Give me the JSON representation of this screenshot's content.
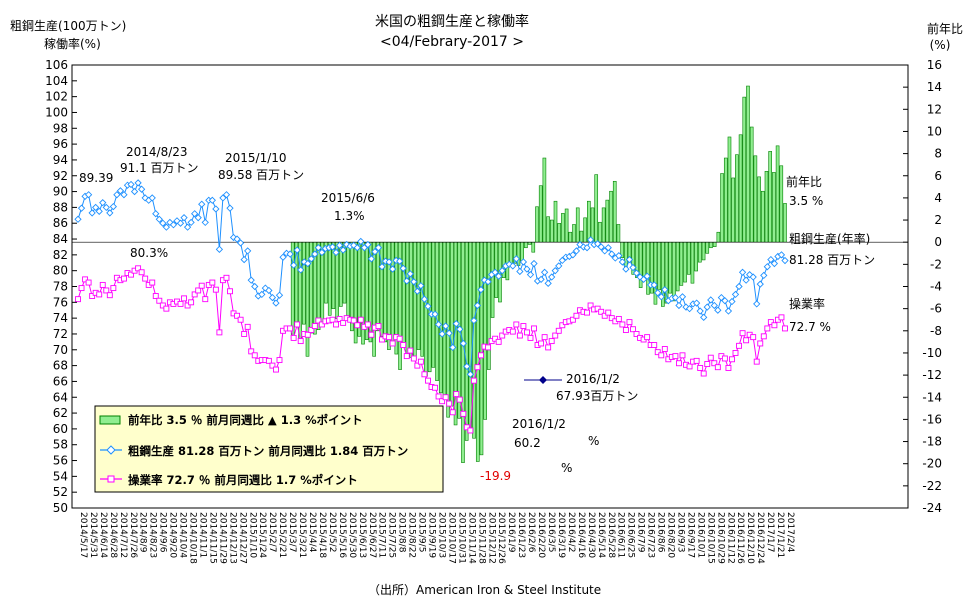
{
  "chart_data": {
    "type": "bar+line",
    "title": "米国の粗鋼生産と稼働率",
    "subtitle": "<04/Febrary-2017 >",
    "left_axis_label_1": "粗鋼生産(100万トン)",
    "left_axis_label_2": "稼働率(%)",
    "right_axis_label_1": "前年比",
    "right_axis_label_2": "(%)",
    "source": "（出所）American Iron & Steel Institute",
    "y_left": {
      "min": 50,
      "max": 106,
      "step": 2
    },
    "y_right": {
      "min": -24,
      "max": 16,
      "step": 2
    },
    "grid": false,
    "x_tick_labels": [
      "2014/5/17",
      "2014/5/31",
      "2014/6/14",
      "2014/6/28",
      "2014/7/12",
      "2014/7/26",
      "2014/8/9",
      "2014/8/23",
      "2014/9/6",
      "2014/9/20",
      "2014/10/4",
      "2014/10/18",
      "2014/11/1",
      "2014/11/15",
      "2014/11/29",
      "2014/12/13",
      "2014/12/27",
      "2015/1/10",
      "2015/1/24",
      "2015/2/7",
      "2015/2/21",
      "2015/3/7",
      "2015/3/21",
      "2015/4/4",
      "2015/4/18",
      "2015/5/2",
      "2015/5/16",
      "2015/5/30",
      "2015/6/13",
      "2015/6/27",
      "2015/7/11",
      "2015/7/25",
      "2015/8/8",
      "2015/8/22",
      "2015/9/5",
      "2015/9/19",
      "2015/10/3",
      "2015/10/17",
      "2015/10/31",
      "2015/11/14",
      "2015/11/28",
      "2015/12/12",
      "2015/12/26",
      "2016/1/9",
      "2016/1/23",
      "2016/2/6",
      "2016/2/20",
      "2016/3/5",
      "2016/3/19",
      "2016/4/2",
      "2016/4/16",
      "2016/4/30",
      "2016/5/14",
      "2016/5/28",
      "2016/6/11",
      "2016/6/25",
      "2016/7/9",
      "2016/7/23",
      "2016/8/6",
      "2016/8/20",
      "2016/9/3",
      "2016/9/17",
      "2016/10/1",
      "2016/10/15",
      "2016/10/29",
      "2016/11/12",
      "2016/11/26",
      "2016/12/10",
      "2016/12/24",
      "2017/1/7",
      "2017/1/21",
      "2017/2/4"
    ],
    "series": [
      {
        "name": "粗鋼生産",
        "axis": "left",
        "color": "#1e90ff",
        "marker": "diamond",
        "values": [
          86.5,
          87.9,
          89.4,
          89.6,
          87.3,
          88.0,
          87.5,
          88.6,
          88.0,
          87.3,
          88.1,
          89.6,
          90.1,
          89.6,
          90.8,
          90.9,
          90.0,
          91.1,
          90.3,
          89.2,
          88.9,
          89.2,
          87.2,
          86.5,
          86.0,
          85.5,
          86.1,
          85.8,
          86.3,
          86.0,
          86.7,
          85.5,
          86.1,
          87.2,
          86.7,
          88.4,
          86.1,
          88.9,
          88.9,
          87.8,
          82.7,
          89.2,
          89.6,
          87.9,
          84.2,
          84.0,
          83.5,
          81.4,
          82.5,
          78.8,
          78.0,
          76.8,
          77.0,
          77.8,
          77.5,
          76.6,
          75.9,
          76.9,
          81.7,
          82.2,
          82.1,
          80.7,
          82.6,
          80.1,
          81.1,
          80.9,
          81.5,
          82.1,
          82.9,
          82.3,
          82.8,
          82.9,
          83.0,
          82.3,
          83.2,
          82.6,
          83.3,
          83.1,
          83.2,
          82.9,
          83.7,
          82.9,
          83.3,
          81.5,
          82.4,
          82.9,
          80.5,
          81.2,
          81.1,
          80.2,
          81.3,
          81.2,
          80.3,
          78.7,
          79.6,
          78.6,
          77.4,
          78.1,
          76.4,
          75.5,
          74.5,
          74.5,
          73.2,
          72.0,
          73.0,
          72.1,
          70.3,
          73.3,
          72.6,
          70.8,
          67.9,
          66.9,
          73.7,
          75.6,
          77.6,
          78.8,
          78.6,
          79.5,
          79.8,
          79.3,
          80.0,
          80.6,
          80.8,
          80.6,
          81.5,
          79.9,
          81.1,
          80.2,
          79.5,
          80.9,
          78.7,
          78.9,
          79.8,
          78.4,
          79.2,
          80.0,
          80.6,
          81.3,
          81.7,
          81.8,
          82.0,
          82.5,
          83.3,
          83.0,
          82.9,
          83.9,
          83.3,
          83.4,
          83.0,
          82.5,
          82.9,
          82.1,
          81.6,
          81.9,
          81.1,
          80.2,
          81.4,
          80.4,
          79.7,
          79.2,
          78.9,
          79.3,
          78.2,
          78.2,
          77.2,
          76.7,
          77.6,
          76.2,
          76.5,
          76.6,
          75.6,
          76.7,
          75.4,
          75.2,
          75.8,
          75.9,
          74.9,
          74.1,
          75.4,
          76.3,
          75.6,
          75.0,
          76.6,
          76.2,
          74.9,
          76.1,
          77.0,
          78.0,
          79.8,
          78.8,
          79.5,
          79.2,
          75.8,
          78.3,
          79.4,
          80.5,
          81.4,
          80.9,
          81.8,
          82.0,
          81.28
        ]
      },
      {
        "name": "操業率",
        "axis": "left",
        "color": "#ff00ff",
        "marker": "square",
        "values": [
          76.4,
          77.8,
          78.9,
          78.5,
          76.8,
          77.2,
          77.0,
          78.2,
          77.5,
          76.9,
          77.8,
          79.1,
          78.8,
          79.0,
          79.7,
          79.5,
          80.0,
          80.3,
          79.8,
          79.0,
          78.2,
          78.5,
          76.8,
          76.2,
          75.6,
          75.2,
          76.0,
          75.8,
          76.1,
          75.8,
          76.5,
          75.6,
          76.0,
          77.0,
          77.5,
          78.1,
          76.4,
          78.2,
          78.5,
          77.6,
          72.2,
          78.8,
          79.1,
          77.4,
          74.6,
          74.3,
          73.8,
          72.0,
          72.9,
          69.8,
          69.3,
          68.6,
          68.7,
          68.7,
          68.6,
          68.0,
          67.5,
          68.7,
          72.4,
          72.7,
          72.7,
          71.5,
          73.2,
          71.1,
          72.0,
          71.9,
          72.5,
          73.0,
          73.7,
          73.2,
          73.6,
          73.7,
          73.8,
          73.2,
          73.9,
          73.4,
          74.0,
          73.8,
          73.7,
          73.1,
          73.8,
          72.9,
          73.2,
          71.9,
          72.8,
          73.0,
          71.3,
          71.7,
          71.6,
          70.8,
          71.6,
          71.4,
          70.6,
          69.2,
          69.9,
          68.9,
          68.0,
          68.5,
          66.9,
          66.1,
          65.3,
          65.2,
          64.1,
          63.5,
          64.0,
          63.2,
          62.1,
          64.4,
          63.7,
          61.9,
          60.2,
          59.8,
          66.1,
          67.8,
          69.3,
          70.4,
          70.3,
          71.1,
          71.4,
          71.0,
          71.8,
          72.3,
          72.5,
          72.3,
          73.2,
          71.8,
          73.0,
          72.2,
          71.5,
          72.7,
          70.6,
          70.8,
          71.6,
          70.3,
          71.1,
          71.8,
          72.4,
          73.1,
          73.5,
          73.6,
          73.8,
          74.3,
          75.0,
          74.8,
          74.7,
          75.6,
          75.1,
          75.2,
          74.8,
          74.3,
          74.7,
          74.0,
          73.6,
          73.9,
          73.2,
          72.5,
          73.5,
          72.6,
          72.0,
          71.5,
          71.3,
          71.6,
          70.6,
          70.6,
          69.7,
          69.3,
          70.1,
          68.8,
          69.1,
          69.2,
          68.3,
          69.3,
          68.1,
          67.9,
          68.5,
          68.6,
          67.7,
          67.0,
          68.2,
          69.0,
          68.3,
          67.8,
          69.2,
          68.9,
          67.7,
          68.8,
          69.6,
          70.5,
          72.1,
          71.2,
          71.9,
          71.6,
          68.5,
          70.8,
          71.7,
          72.7,
          73.5,
          73.1,
          73.8,
          74.1,
          72.7
        ]
      },
      {
        "name": "前年比",
        "axis": "right",
        "type": "bar",
        "color": "#90ee90",
        "border": "#008000",
        "values": [
          0,
          0,
          0,
          0,
          0,
          0,
          0,
          0,
          0,
          0,
          0,
          0,
          0,
          0,
          0,
          0,
          0,
          0,
          0,
          0,
          0,
          0,
          0,
          0,
          0,
          0,
          0,
          0,
          0,
          0,
          0,
          0,
          0,
          0,
          0,
          0,
          0,
          0,
          0,
          0,
          0,
          0,
          0,
          0,
          0,
          0,
          0,
          0,
          0,
          0,
          0,
          0,
          0,
          0,
          0,
          0,
          0,
          0,
          -8.7,
          -7.2,
          -8.7,
          -7.4,
          -10.3,
          -8.2,
          -8.3,
          -7.9,
          -7.3,
          -5.5,
          -6.6,
          -6.0,
          -6.9,
          -5.8,
          -5.5,
          -7.0,
          -8.0,
          -9.1,
          -8.5,
          -9.2,
          -8.8,
          -9.0,
          -10.3,
          -8.0,
          -8.5,
          -9.0,
          -9.7,
          -8.9,
          -10.1,
          -11.5,
          -9.3,
          -10.1,
          -10.4,
          -10.6,
          -9.7,
          -10.3,
          -12.1,
          -11.7,
          -11.3,
          -12.5,
          -13.6,
          -14.2,
          -15.8,
          -14.8,
          -16.5,
          -15.9,
          -19.9,
          -17.9,
          -16.9,
          -17.7,
          -19.8,
          -19.2,
          -16.0,
          -11.5,
          -6.8,
          -5.0,
          -5.4,
          -3.2,
          -3.4,
          -2.2,
          -1.9,
          -2.1,
          -1.8,
          -0.5,
          -0.2,
          -0.9,
          3.2,
          5.1,
          7.6,
          2.3,
          2.0,
          3.7,
          1.7,
          2.6,
          3.0,
          0.9,
          1.6,
          3.1,
          1.0,
          2.2,
          3.7,
          3.1,
          6.1,
          1.8,
          3.1,
          3.8,
          4.6,
          5.5,
          1.6,
          -1.4,
          -2.4,
          -1.6,
          -2.9,
          -3.2,
          -4.1,
          -3.4,
          -4.7,
          -4.6,
          -5.6,
          -4.3,
          -5.8,
          -5.5,
          -4.6,
          -5.3,
          -4.4,
          -3.9,
          -3.6,
          -2.9,
          -3.7,
          -2.6,
          -1.8,
          -1.6,
          -1.0,
          -0.5,
          -0.4,
          0.9,
          6.2,
          7.6,
          9.5,
          5.8,
          7.9,
          9.7,
          13.1,
          14.1,
          10.4,
          7.8,
          5.9,
          4.6,
          6.4,
          8.2,
          6.3,
          8.7,
          6.9,
          3.5
        ]
      }
    ],
    "annotations": [
      {
        "text": "89.39"
      },
      {
        "text": "2014/8/23"
      },
      {
        "text": "91.1 百万トン"
      },
      {
        "text": "2015/1/10"
      },
      {
        "text": "89.58 百万トン"
      },
      {
        "text": "80.3%"
      },
      {
        "text": "2015/6/6"
      },
      {
        "text": "1.3%"
      },
      {
        "text": "2016/1/2"
      },
      {
        "text": "67.93百万トン"
      },
      {
        "text": "2016/1/2"
      },
      {
        "text": "60.2"
      },
      {
        "text": "%"
      },
      {
        "text": "%"
      },
      {
        "text": "-19.9"
      },
      {
        "text": "前年比"
      },
      {
        "text": "3.5 %"
      },
      {
        "text": "粗鋼生産(年率)"
      },
      {
        "text": "81.28 百万トン"
      },
      {
        "text": "操業率"
      },
      {
        "text": "72.7 %"
      }
    ],
    "legend": {
      "position": "bottom-left",
      "items": [
        {
          "label": "前年比 3.5 ％ 前月同週比 ▲ 1.3 %ポイント"
        },
        {
          "label": "粗鋼生産 81.28 百万トン 前月同週比 1.84 百万トン"
        },
        {
          "label": "操業率 72.7 ％ 前月同週比 1.7 %ポイント"
        }
      ]
    }
  }
}
